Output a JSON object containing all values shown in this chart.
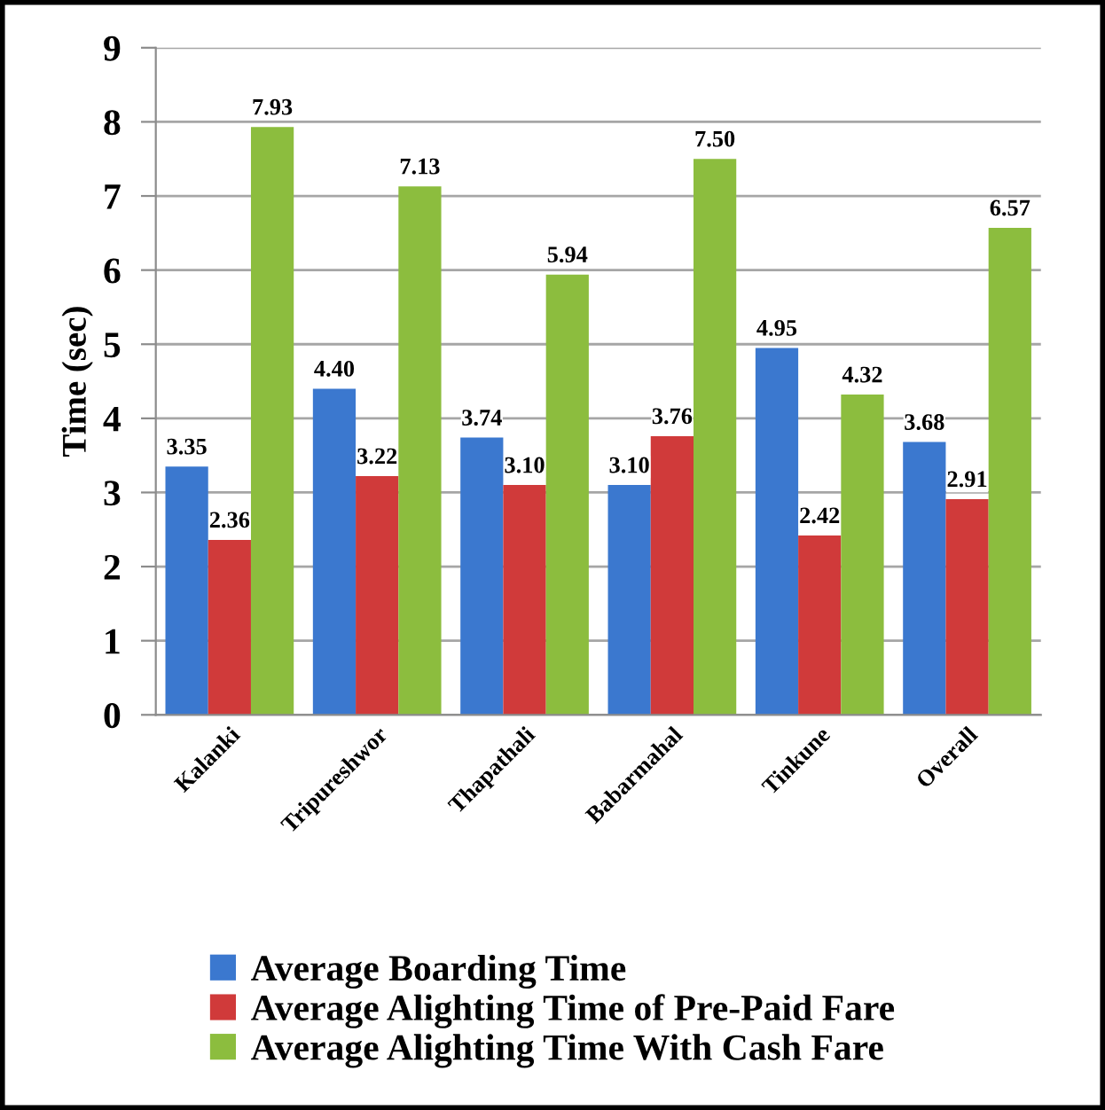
{
  "chart_data": {
    "type": "bar",
    "ylabel": "Time (sec)",
    "categories": [
      "Kalanki",
      "Tripureshwor",
      "Thapathali",
      "Babarmahal",
      "Tinkune",
      "Overall"
    ],
    "series": [
      {
        "name": "Average Boarding Time",
        "color": "#3b78cf",
        "values": [
          3.35,
          4.4,
          3.74,
          3.1,
          4.95,
          3.68
        ],
        "value_labels": [
          "3.35",
          "4.40",
          "3.74",
          "3.10",
          "4.95",
          "3.68"
        ]
      },
      {
        "name": "Average Alighting Time of Pre-Paid Fare",
        "color": "#d03a3a",
        "values": [
          2.36,
          3.22,
          3.1,
          3.76,
          2.42,
          2.91
        ],
        "value_labels": [
          "2.36",
          "3.22",
          "3.10",
          "3.76",
          "2.42",
          "2.91"
        ]
      },
      {
        "name": "Average Alighting Time With Cash Fare",
        "color": "#8cbd3e",
        "values": [
          7.93,
          7.13,
          5.94,
          7.5,
          4.32,
          6.57
        ],
        "value_labels": [
          "7.93",
          "7.13",
          "5.94",
          "7.50",
          "4.32",
          "6.57"
        ]
      }
    ],
    "ylim": [
      0,
      9
    ],
    "yticks": [
      0,
      1,
      2,
      3,
      4,
      5,
      6,
      7,
      8,
      9
    ],
    "grid": "y",
    "legend": "bottom"
  }
}
